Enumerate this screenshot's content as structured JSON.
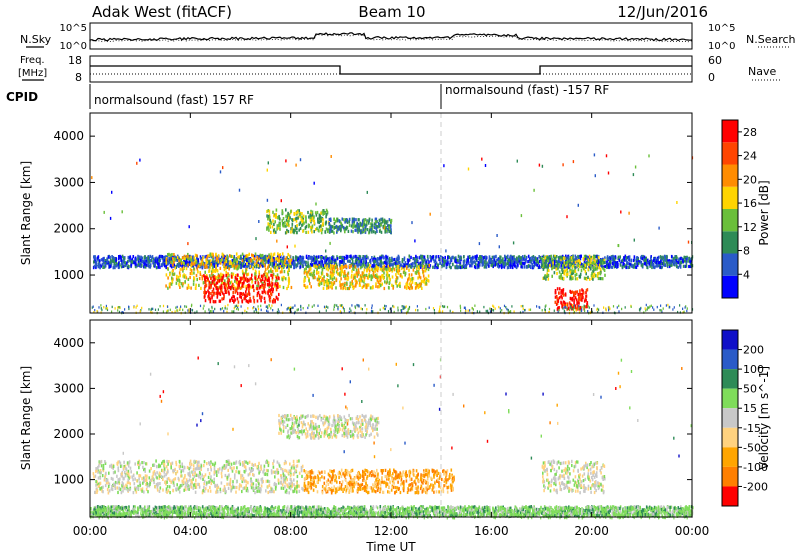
{
  "header": {
    "radar": "Adak West (fitACF)",
    "beam": "Beam 10",
    "date": "12/Jun/2016"
  },
  "top_panel": {
    "left_label": "N.Sky",
    "right_label": "N.Search",
    "left_ticks": [
      "10^5",
      "10^0"
    ],
    "right_ticks": [
      "10^5",
      "10^0"
    ]
  },
  "freq_panel": {
    "left_label_1": "Freq.",
    "left_label_2": "[MHz]",
    "right_label": "Nave",
    "left_ticks": [
      "18",
      "8"
    ],
    "right_ticks": [
      "60",
      "0"
    ]
  },
  "cpid_panel": {
    "label": "CPID",
    "segments": [
      "normalsound (fast) 157 RF",
      "normalsound (fast) -157 RF"
    ]
  },
  "colors": {
    "power": [
      "#0000ff",
      "#2a5bc8",
      "#2e8b57",
      "#6abf3a",
      "#ffd400",
      "#ff8c00",
      "#ff4500",
      "#ff0000"
    ],
    "velocity": [
      "#ff0000",
      "#ff7f00",
      "#ffa500",
      "#ffd27f",
      "#c8c8c8",
      "#7fdc5a",
      "#2e8b57",
      "#2a5bc8",
      "#1010c8"
    ],
    "ground": "#7fdc5a"
  },
  "chart_data": [
    {
      "type": "heatmap",
      "name": "power",
      "ylabel": "Slant Range [km]",
      "xlim": [
        "00:00",
        "24:00"
      ],
      "ylim": [
        180,
        4500
      ],
      "y_ticks": [
        1000,
        2000,
        3000,
        4000
      ],
      "colorbar_label": "Power [dB]",
      "colorbar_ticks": [
        "4",
        "8",
        "12",
        "16",
        "20",
        "24",
        "28"
      ],
      "colorbar_range": [
        0,
        30
      ],
      "regions": [
        {
          "t_start": 0.1,
          "t_end": 24.0,
          "r_start": 1150,
          "r_end": 1400,
          "level": 1
        },
        {
          "t_start": 3.0,
          "t_end": 8.0,
          "r_start": 700,
          "r_end": 1450,
          "level": 4
        },
        {
          "t_start": 4.5,
          "t_end": 7.5,
          "r_start": 400,
          "r_end": 1000,
          "level": 7
        },
        {
          "t_start": 8.5,
          "t_end": 13.5,
          "r_start": 700,
          "r_end": 1200,
          "level": 4
        },
        {
          "t_start": 7.0,
          "t_end": 9.5,
          "r_start": 1900,
          "r_end": 2400,
          "level": 3
        },
        {
          "t_start": 9.5,
          "t_end": 12.0,
          "r_start": 1900,
          "r_end": 2200,
          "level": 2
        },
        {
          "t_start": 18.0,
          "t_end": 20.5,
          "r_start": 900,
          "r_end": 1400,
          "level": 3
        },
        {
          "t_start": 18.5,
          "t_end": 19.8,
          "r_start": 250,
          "r_end": 700,
          "level": 7
        }
      ]
    },
    {
      "type": "heatmap",
      "name": "velocity",
      "ylabel": "Slant Range [km]",
      "xlabel": "Time UT",
      "x_ticks": [
        "00:00",
        "04:00",
        "08:00",
        "12:00",
        "16:00",
        "20:00",
        "00:00"
      ],
      "xlim": [
        "00:00",
        "24:00"
      ],
      "ylim": [
        180,
        4500
      ],
      "y_ticks": [
        1000,
        2000,
        3000,
        4000
      ],
      "colorbar_label": "Velocity [m s^-1]",
      "colorbar_ticks": [
        "200",
        "100",
        "50",
        "15",
        "-15",
        "-50",
        "-100",
        "-200"
      ],
      "regions": [
        {
          "t_start": 0.1,
          "t_end": 8.5,
          "r_start": 700,
          "r_end": 1400,
          "level": 4
        },
        {
          "t_start": 8.5,
          "t_end": 14.5,
          "r_start": 700,
          "r_end": 1200,
          "level": 2
        },
        {
          "t_start": 7.5,
          "t_end": 11.5,
          "r_start": 1900,
          "r_end": 2400,
          "level": 4
        },
        {
          "t_start": 18.0,
          "t_end": 20.5,
          "r_start": 700,
          "r_end": 1400,
          "level": 4
        },
        {
          "t_start": 0.0,
          "t_end": 24.0,
          "r_start": 180,
          "r_end": 400,
          "level": 5
        }
      ]
    }
  ]
}
